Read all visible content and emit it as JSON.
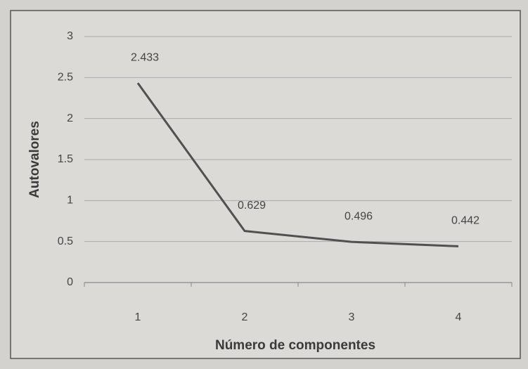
{
  "chart_data": {
    "type": "line",
    "xlabel": "Número de componentes",
    "ylabel": "Autovalores",
    "categories": [
      "1",
      "2",
      "3",
      "4"
    ],
    "series": [
      {
        "name": "Autovalores",
        "color": "#505050",
        "values": [
          2.433,
          0.629,
          0.496,
          0.442
        ]
      }
    ],
    "ylim": [
      0,
      3
    ],
    "yticks": [
      0,
      0.5,
      1,
      1.5,
      2,
      2.5,
      3
    ],
    "grid": true
  }
}
